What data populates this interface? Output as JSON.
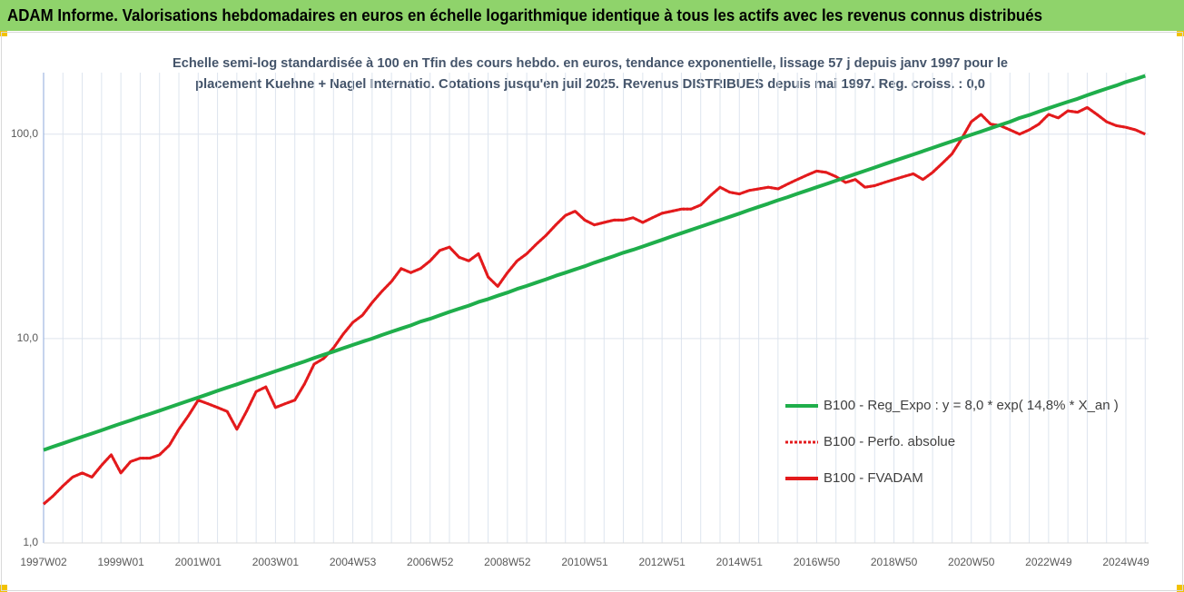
{
  "chart_data": {
    "type": "line",
    "title": "ADAM Informe. Valorisations hebdomadaires en euros en échelle logarithmique identique à tous les actifs avec les revenus connus distribués",
    "subtitle": [
      "Echelle semi-log standardisée à 100 en Tfin des cours hebdo. en euros, tendance exponentielle, lissage 57 j depuis janv 1997 pour le",
      "placement Kuehne + Nagel Internatio. Cotations jusqu'en juil 2025. Revenus DISTRIBUES depuis mai 1997.  Reg. croiss. : 0,0"
    ],
    "log_scale": true,
    "grid": true,
    "legend": "lower right",
    "ylim": [
      1,
      200
    ],
    "yticks": [
      {
        "value": 1,
        "label": "1,0"
      },
      {
        "value": 10,
        "label": "10,0"
      },
      {
        "value": 100,
        "label": "100,0"
      }
    ],
    "categories": [
      "1997W02",
      null,
      null,
      null,
      null,
      null,
      null,
      null,
      "1999W01",
      null,
      null,
      null,
      null,
      null,
      null,
      null,
      "2001W01",
      null,
      null,
      null,
      null,
      null,
      null,
      null,
      "2003W01",
      null,
      null,
      null,
      null,
      null,
      null,
      null,
      "2004W53",
      null,
      null,
      null,
      null,
      null,
      null,
      null,
      "2006W52",
      null,
      null,
      null,
      null,
      null,
      null,
      null,
      "2008W52",
      null,
      null,
      null,
      null,
      null,
      null,
      null,
      "2010W51",
      null,
      null,
      null,
      null,
      null,
      null,
      null,
      "2012W51",
      null,
      null,
      null,
      null,
      null,
      null,
      null,
      "2014W51",
      null,
      null,
      null,
      null,
      null,
      null,
      null,
      "2016W50",
      null,
      null,
      null,
      null,
      null,
      null,
      null,
      "2018W50",
      null,
      null,
      null,
      null,
      null,
      null,
      null,
      "2020W50",
      null,
      null,
      null,
      null,
      null,
      null,
      null,
      "2022W49",
      null,
      null,
      null,
      null,
      null,
      null,
      null,
      "2024W49",
      null,
      null
    ],
    "series": [
      {
        "name": "B100 - Reg_Expo : y = 8,0 * exp( 14,8% *  X_an )",
        "color": "#1fae4b",
        "line_style": "solid",
        "values": [
          2.85,
          2.96,
          3.07,
          3.19,
          3.31,
          3.43,
          3.56,
          3.7,
          3.84,
          3.98,
          4.13,
          4.28,
          4.44,
          4.61,
          4.78,
          4.96,
          5.15,
          5.34,
          5.55,
          5.76,
          5.97,
          6.2,
          6.43,
          6.67,
          6.92,
          7.18,
          7.45,
          7.73,
          8.03,
          8.33,
          8.64,
          8.97,
          9.31,
          9.66,
          10.0,
          10.4,
          10.8,
          11.2,
          11.6,
          12.1,
          12.5,
          13.0,
          13.5,
          14.0,
          14.5,
          15.1,
          15.6,
          16.2,
          16.8,
          17.5,
          18.1,
          18.8,
          19.5,
          20.3,
          21.0,
          21.8,
          22.6,
          23.5,
          24.4,
          25.3,
          26.3,
          27.2,
          28.2,
          29.3,
          30.4,
          31.6,
          32.8,
          34.0,
          35.3,
          36.6,
          38.0,
          39.4,
          40.9,
          42.5,
          44.1,
          45.7,
          47.5,
          49.2,
          51.1,
          53.0,
          55.0,
          57.1,
          59.2,
          61.5,
          63.8,
          66.2,
          68.7,
          71.3,
          74.0,
          76.7,
          79.6,
          82.6,
          85.7,
          89.0,
          92.3,
          95.8,
          99.4,
          103,
          107,
          111,
          115,
          120,
          124,
          129,
          134,
          139,
          144,
          149,
          155,
          161,
          167,
          173,
          180,
          186,
          193
        ]
      },
      {
        "name": "B100 - Perfo. absolue",
        "color": "#e31a1c",
        "line_style": "dotted",
        "values": [
          1.55,
          1.7,
          1.9,
          2.1,
          2.2,
          2.1,
          2.4,
          2.7,
          2.2,
          2.5,
          2.6,
          2.6,
          2.7,
          3.0,
          3.6,
          4.2,
          5.0,
          4.8,
          4.6,
          4.4,
          3.6,
          4.4,
          5.5,
          5.8,
          4.6,
          4.8,
          5.0,
          6.0,
          7.5,
          8.0,
          9.0,
          10.5,
          12,
          13,
          15,
          17,
          19,
          22,
          21,
          22,
          24,
          27,
          28,
          25,
          24,
          26,
          20,
          18,
          21,
          24,
          26,
          29,
          32,
          36,
          40,
          42,
          38,
          36,
          37,
          38,
          38,
          39,
          37,
          39,
          41,
          42,
          43,
          43,
          45,
          50,
          55,
          52,
          51,
          53,
          54,
          55,
          54,
          57,
          60,
          63,
          66,
          65,
          62,
          58,
          60,
          55,
          56,
          58,
          60,
          62,
          64,
          60,
          65,
          72,
          80,
          95,
          115,
          125,
          112,
          110,
          105,
          100,
          105,
          112,
          125,
          120,
          130,
          128,
          135,
          125,
          115,
          110,
          108,
          105,
          100
        ]
      },
      {
        "name": "B100 - FVADAM",
        "color": "#e31a1c",
        "line_style": "solid",
        "values": [
          1.55,
          1.7,
          1.9,
          2.1,
          2.2,
          2.1,
          2.4,
          2.7,
          2.2,
          2.5,
          2.6,
          2.6,
          2.7,
          3.0,
          3.6,
          4.2,
          5.0,
          4.8,
          4.6,
          4.4,
          3.6,
          4.4,
          5.5,
          5.8,
          4.6,
          4.8,
          5.0,
          6.0,
          7.5,
          8.0,
          9.0,
          10.5,
          12,
          13,
          15,
          17,
          19,
          22,
          21,
          22,
          24,
          27,
          28,
          25,
          24,
          26,
          20,
          18,
          21,
          24,
          26,
          29,
          32,
          36,
          40,
          42,
          38,
          36,
          37,
          38,
          38,
          39,
          37,
          39,
          41,
          42,
          43,
          43,
          45,
          50,
          55,
          52,
          51,
          53,
          54,
          55,
          54,
          57,
          60,
          63,
          66,
          65,
          62,
          58,
          60,
          55,
          56,
          58,
          60,
          62,
          64,
          60,
          65,
          72,
          80,
          95,
          115,
          125,
          112,
          110,
          105,
          100,
          105,
          112,
          125,
          120,
          130,
          128,
          135,
          125,
          115,
          110,
          108,
          105,
          100
        ]
      }
    ]
  }
}
